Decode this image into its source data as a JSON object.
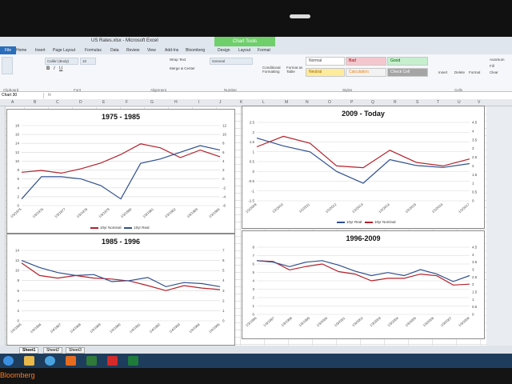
{
  "window": {
    "title": "US Rates.xlsx - Microsoft Excel",
    "contextual_tab": "Chart Tools"
  },
  "tabs": [
    "File",
    "Home",
    "Insert",
    "Page Layout",
    "Formulas",
    "Data",
    "Review",
    "View",
    "Add-Ins",
    "Bloomberg",
    "Design",
    "Layout",
    "Format"
  ],
  "ribbon": {
    "font_name": "Calibri (Body)",
    "font_size": "10",
    "number_format": "General",
    "wrap_text": "Wrap Text",
    "merge": "Merge & Center",
    "cond_format": "Conditional Formatting",
    "format_table": "Format as Table",
    "styles": [
      "Normal",
      "Bad",
      "Good",
      "Neutral",
      "Calculation",
      "Check Cell"
    ],
    "cells": [
      "Insert",
      "Delete",
      "Format"
    ],
    "groups": [
      "Clipboard",
      "Font",
      "Alignment",
      "Number",
      "Styles",
      "Cells"
    ],
    "autosum": "AutoSum",
    "fill": "Fill",
    "clear": "Clear"
  },
  "formula_bar": {
    "name_box": "Chart 30",
    "formula": ""
  },
  "columns": [
    "A",
    "B",
    "C",
    "D",
    "E",
    "F",
    "G",
    "H",
    "I",
    "J",
    "K",
    "L",
    "M",
    "N",
    "O",
    "P",
    "Q",
    "R",
    "S",
    "T",
    "U",
    "V"
  ],
  "sheets": [
    "Sheet1",
    "Sheet2",
    "Sheet3"
  ],
  "colors": {
    "real": "#2f4f8f",
    "nominal": "#b3202a"
  },
  "charts": [
    {
      "title": "1975 - 1985",
      "left_axis": [
        "18",
        "16",
        "14",
        "12",
        "10",
        "8",
        "6",
        "4",
        "2",
        "0"
      ],
      "right_axis": [
        "12",
        "10",
        "8",
        "6",
        "4",
        "2",
        "0",
        "-2",
        "-4",
        "-6"
      ],
      "x_labels": [
        "1/3/1975",
        "1/3/1976",
        "1/3/1977",
        "1/3/1978",
        "1/3/1979",
        "1/3/1980",
        "1/3/1981",
        "1/3/1982",
        "1/3/1983",
        "1/3/1984"
      ],
      "legend": [
        "10yr Nominal",
        "10yr Real"
      ]
    },
    {
      "title": "2009 - Today",
      "left_axis": [
        "2.5",
        "2",
        "1.5",
        "1",
        "0.5",
        "0",
        "-0.5",
        "-1",
        "-1.5"
      ],
      "right_axis": [
        "4.5",
        "4",
        "3.5",
        "3",
        "2.5",
        "2",
        "1.5",
        "1",
        "0.5",
        "0"
      ],
      "x_labels": [
        "1/2/2009",
        "1/2/2010",
        "1/2/2011",
        "1/2/2012",
        "1/2/2013",
        "1/2/2014",
        "1/2/2015",
        "1/2/2016",
        "1/2/2017"
      ],
      "legend": [
        "10yr Real",
        "10yr Nominal"
      ]
    },
    {
      "title": "1985 - 1996",
      "left_axis": [
        "14",
        "12",
        "10",
        "8",
        "6",
        "4",
        "2",
        "0"
      ],
      "right_axis": [
        "7",
        "6",
        "5",
        "4",
        "3",
        "2",
        "1",
        "0"
      ],
      "x_labels": [
        "1/4/1985",
        "1/4/1986",
        "1/4/1987",
        "1/4/1988",
        "1/4/1989",
        "1/4/1990",
        "1/4/1991",
        "1/4/1992",
        "1/4/1993",
        "1/4/1994",
        "1/4/1995"
      ],
      "legend": []
    },
    {
      "title": "1996-2009",
      "left_axis": [
        "8",
        "7",
        "6",
        "5",
        "4",
        "3",
        "2",
        "1",
        "0"
      ],
      "right_axis": [
        "4.5",
        "4",
        "3.5",
        "3",
        "2.5",
        "2",
        "1.5",
        "1",
        "0.5",
        "0"
      ],
      "x_labels": [
        "1/3/1996",
        "1/3/1997",
        "1/3/1998",
        "1/3/1999",
        "1/3/2000",
        "1/3/2001",
        "1/3/2002",
        "1/3/2003",
        "1/3/2004",
        "1/3/2005",
        "1/3/2006",
        "1/3/2007",
        "1/3/2008"
      ],
      "legend": []
    }
  ],
  "chart_data": [
    {
      "type": "line",
      "title": "1975 - 1985",
      "x": [
        "1975",
        "1976",
        "1977",
        "1978",
        "1979",
        "1980",
        "1981",
        "1982",
        "1983",
        "1984",
        "1985"
      ],
      "series": [
        {
          "name": "10yr Nominal",
          "axis": "left",
          "values": [
            7.5,
            7.9,
            7.3,
            8.3,
            9.6,
            11.5,
            13.9,
            13.0,
            10.8,
            12.5,
            11.0
          ]
        },
        {
          "name": "10yr Real",
          "axis": "right",
          "values": [
            -4.5,
            0.5,
            0.5,
            0,
            -1.5,
            -4.5,
            3.5,
            4.5,
            6.0,
            7.5,
            6.5
          ]
        }
      ],
      "left_range": [
        0,
        18
      ],
      "right_range": [
        -6,
        12
      ]
    },
    {
      "type": "line",
      "title": "2009 - Today",
      "x": [
        "2009",
        "2010",
        "2011",
        "2012",
        "2013",
        "2014",
        "2015",
        "2016",
        "2017"
      ],
      "series": [
        {
          "name": "10yr Real",
          "axis": "left",
          "values": [
            1.7,
            1.3,
            1.0,
            0.0,
            -0.6,
            0.6,
            0.3,
            0.2,
            0.4
          ]
        },
        {
          "name": "10yr Nominal",
          "axis": "right",
          "values": [
            3.1,
            3.7,
            3.3,
            2.0,
            1.9,
            2.9,
            2.2,
            2.0,
            2.4
          ]
        }
      ],
      "left_range": [
        -1.5,
        2.5
      ],
      "right_range": [
        0,
        4.5
      ]
    },
    {
      "type": "line",
      "title": "1985 - 1996",
      "x": [
        "1985",
        "1986",
        "1987",
        "1988",
        "1989",
        "1990",
        "1991",
        "1992",
        "1993",
        "1994",
        "1995",
        "1996"
      ],
      "series": [
        {
          "name": "10yr Nominal",
          "axis": "left",
          "values": [
            11.5,
            9.0,
            8.5,
            9.0,
            8.5,
            8.3,
            7.9,
            7.0,
            6.0,
            7.0,
            6.5,
            6.2
          ]
        },
        {
          "name": "10yr Real",
          "axis": "right",
          "values": [
            6.0,
            5.3,
            4.8,
            4.5,
            4.6,
            3.9,
            4.0,
            4.3,
            3.4,
            3.8,
            3.7,
            3.4
          ]
        }
      ],
      "left_range": [
        0,
        14
      ],
      "right_range": [
        0,
        7
      ]
    },
    {
      "type": "line",
      "title": "1996-2009",
      "x": [
        "1996",
        "1997",
        "1998",
        "1999",
        "2000",
        "2001",
        "2002",
        "2003",
        "2004",
        "2005",
        "2006",
        "2007",
        "2008",
        "2009"
      ],
      "series": [
        {
          "name": "10yr Nominal",
          "axis": "left",
          "values": [
            6.4,
            6.3,
            5.3,
            5.7,
            6.0,
            5.1,
            4.8,
            4.0,
            4.3,
            4.3,
            4.8,
            4.6,
            3.5,
            3.6
          ]
        },
        {
          "name": "10yr Real",
          "axis": "right",
          "values": [
            3.6,
            3.5,
            3.2,
            3.5,
            3.6,
            3.3,
            2.9,
            2.6,
            2.8,
            2.6,
            3.0,
            2.7,
            2.2,
            2.6
          ]
        }
      ],
      "left_range": [
        0,
        8
      ],
      "right_range": [
        0,
        4.5
      ]
    }
  ]
}
